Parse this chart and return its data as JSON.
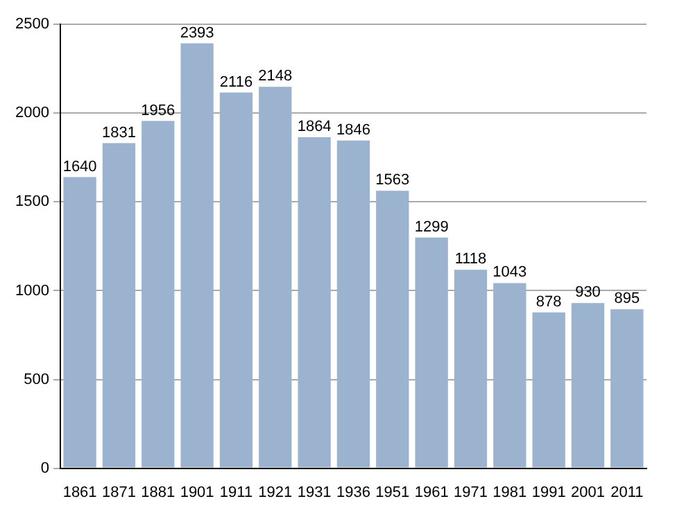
{
  "chart_data": {
    "type": "bar",
    "categories": [
      "1861",
      "1871",
      "1881",
      "1901",
      "1911",
      "1921",
      "1931",
      "1936",
      "1951",
      "1961",
      "1971",
      "1981",
      "1991",
      "2001",
      "2011"
    ],
    "values": [
      1640,
      1831,
      1956,
      2393,
      2116,
      2148,
      1864,
      1846,
      1563,
      1299,
      1118,
      1043,
      878,
      930,
      895
    ],
    "color": "#9bb3cf",
    "ylim": [
      0,
      2500
    ],
    "yticks": [
      0,
      500,
      1000,
      1500,
      2000,
      2500
    ],
    "grid": "y",
    "data_labels": true,
    "legend": false
  }
}
